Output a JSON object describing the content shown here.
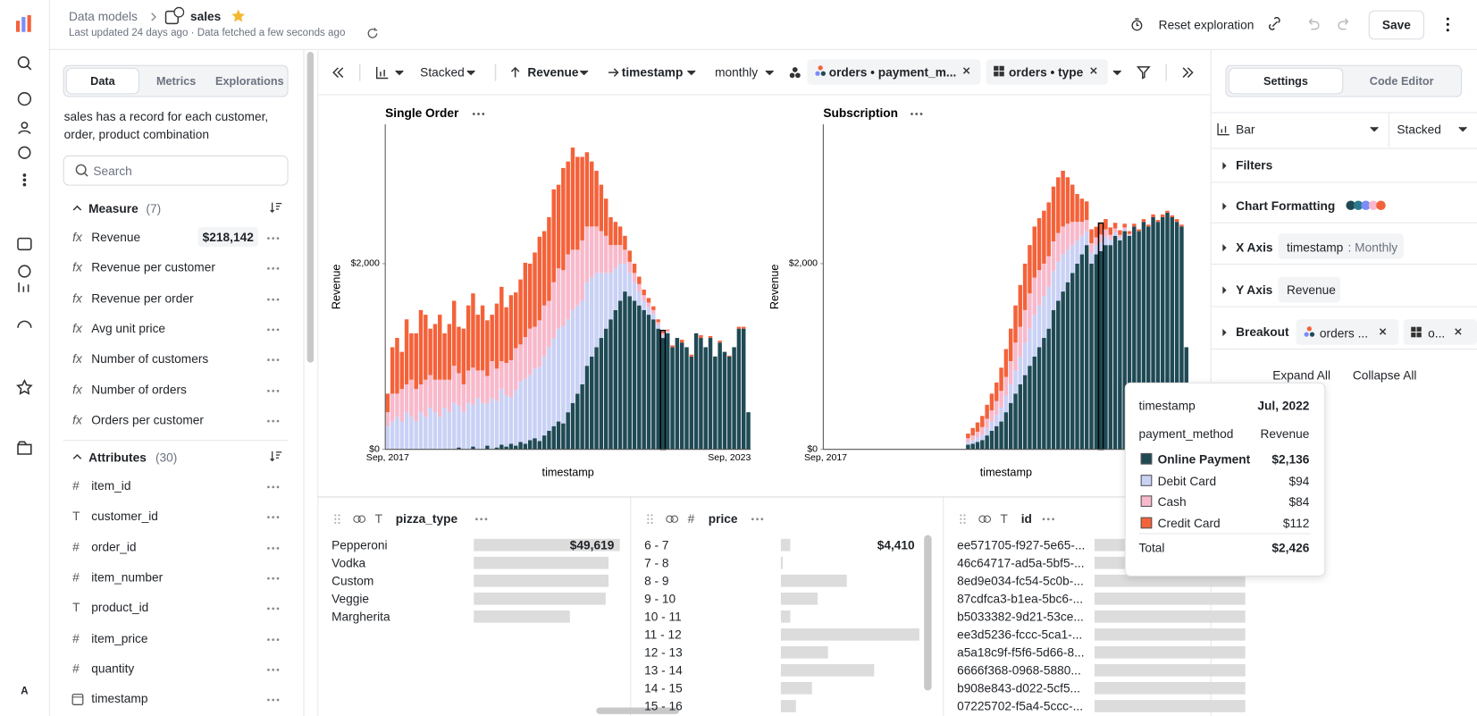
{
  "header": {
    "breadcrumb": "Data models",
    "model": "sales",
    "updated": "Last updated 24 days ago · Data fetched a few seconds ago",
    "reset": "Reset exploration",
    "save": "Save",
    "avatar": "A"
  },
  "sidebar": {
    "tabs": [
      "Data",
      "Metrics",
      "Explorations"
    ],
    "description": "sales has a record for each customer, order, product combination",
    "search": "Search",
    "measure": {
      "title": "Measure",
      "count": "(7)",
      "icon": "fx",
      "items": [
        {
          "name": "Revenue",
          "value": "$218,142"
        },
        {
          "name": "Revenue per customer"
        },
        {
          "name": "Revenue per order"
        },
        {
          "name": "Avg unit price"
        },
        {
          "name": "Number of customers"
        },
        {
          "name": "Number of orders"
        },
        {
          "name": "Orders per customer"
        }
      ]
    },
    "attributes": {
      "title": "Attributes",
      "count": "(30)",
      "items": [
        {
          "name": "item_id",
          "icon": "#"
        },
        {
          "name": "customer_id",
          "icon": "T"
        },
        {
          "name": "order_id",
          "icon": "#"
        },
        {
          "name": "item_number",
          "icon": "#"
        },
        {
          "name": "product_id",
          "icon": "T"
        },
        {
          "name": "item_price",
          "icon": "#"
        },
        {
          "name": "quantity",
          "icon": "#"
        },
        {
          "name": "timestamp"
        }
      ]
    }
  },
  "toolbar": {
    "display": "Stacked",
    "metric": "Revenue",
    "dimension": "timestamp",
    "grain": "monthly",
    "breakouts": [
      "orders • payment_m...",
      "orders • type"
    ]
  },
  "chart_data": [
    {
      "type": "bar",
      "stacked": true,
      "title": "Single Order",
      "y_label": "Revenue",
      "x_label": "timestamp",
      "highlight": 58,
      "categories": [
        "Sep, 2017",
        null,
        null,
        null,
        null,
        null,
        null,
        null,
        null,
        null,
        null,
        null,
        null,
        null,
        null,
        null,
        null,
        null,
        null,
        null,
        null,
        null,
        null,
        null,
        null,
        null,
        null,
        null,
        null,
        null,
        null,
        null,
        null,
        null,
        null,
        null,
        null,
        null,
        null,
        null,
        null,
        null,
        null,
        null,
        null,
        null,
        null,
        null,
        null,
        null,
        null,
        null,
        null,
        null,
        null,
        null,
        null,
        null,
        null,
        null,
        null,
        null,
        null,
        null,
        null,
        null,
        null,
        null,
        null,
        null,
        null,
        null,
        "Sep, 2023",
        null,
        null,
        null,
        null
      ],
      "ylim": [
        0,
        3500
      ],
      "yticks": [
        {
          "value": 0,
          "label": "$0"
        },
        {
          "value": 2000,
          "label": "$2,000"
        }
      ],
      "series": [
        {
          "name": "Online Payment",
          "color": "#1f4a55",
          "values": [
            0,
            0,
            0,
            0,
            0,
            0,
            0,
            0,
            0,
            0,
            0,
            0,
            0,
            0,
            0,
            20,
            0,
            0,
            30,
            0,
            0,
            40,
            0,
            20,
            50,
            30,
            60,
            40,
            80,
            60,
            100,
            120,
            90,
            150,
            200,
            250,
            300,
            280,
            400,
            500,
            600,
            700,
            900,
            1000,
            1100,
            1200,
            1300,
            1400,
            1500,
            1600,
            1700,
            1650,
            1600,
            1550,
            1500,
            1450,
            1400,
            1300,
            1200,
            1250,
            1100,
            1200,
            1150,
            1100,
            1000,
            1250,
            1200,
            1100,
            1200,
            1000,
            1150,
            1050,
            1000,
            1100,
            1300,
            1300,
            400
          ]
        },
        {
          "name": "Debit Card",
          "color": "#c9d1f5",
          "values": [
            250,
            300,
            350,
            300,
            400,
            350,
            300,
            400,
            350,
            450,
            400,
            350,
            450,
            400,
            500,
            450,
            400,
            500,
            450,
            550,
            500,
            450,
            550,
            500,
            600,
            550,
            500,
            600,
            650,
            700,
            700,
            750,
            800,
            850,
            900,
            950,
            1000,
            1050,
            1000,
            1000,
            950,
            900,
            900,
            850,
            800,
            700,
            600,
            500,
            450,
            400,
            300,
            250,
            200,
            150,
            100,
            80,
            60,
            40,
            30,
            20,
            0,
            0,
            0,
            0,
            0,
            0,
            0,
            0,
            0,
            0,
            0,
            0,
            0,
            0,
            0,
            0,
            0
          ]
        },
        {
          "name": "Cash",
          "color": "#f7b9cb",
          "values": [
            150,
            300,
            250,
            350,
            300,
            400,
            350,
            300,
            400,
            350,
            350,
            400,
            300,
            350,
            400,
            350,
            300,
            350,
            400,
            300,
            350,
            300,
            400,
            350,
            300,
            350,
            400,
            450,
            400,
            450,
            500,
            450,
            500,
            550,
            500,
            600,
            650,
            600,
            700,
            650,
            600,
            650,
            600,
            550,
            500,
            450,
            400,
            300,
            250,
            200,
            150,
            120,
            100,
            80,
            60,
            50,
            40,
            30,
            20,
            10,
            0,
            0,
            0,
            0,
            0,
            0,
            0,
            0,
            0,
            0,
            0,
            0,
            0,
            0,
            0,
            0,
            0
          ]
        },
        {
          "name": "Credit Card",
          "color": "#f4623a",
          "values": [
            200,
            500,
            600,
            400,
            700,
            500,
            600,
            800,
            700,
            500,
            600,
            700,
            500,
            600,
            700,
            500,
            600,
            700,
            800,
            600,
            700,
            600,
            500,
            700,
            800,
            600,
            700,
            600,
            700,
            800,
            700,
            800,
            900,
            800,
            900,
            1000,
            900,
            1100,
            1000,
            1100,
            1000,
            900,
            800,
            700,
            600,
            500,
            400,
            300,
            250,
            200,
            150,
            120,
            100,
            80,
            60,
            50,
            40,
            30,
            20,
            10,
            20,
            0,
            30,
            0,
            20,
            0,
            30,
            0,
            20,
            0,
            20,
            0,
            10,
            0,
            20,
            20,
            0
          ]
        }
      ]
    },
    {
      "type": "bar",
      "stacked": true,
      "title": "Subscription",
      "y_label": "Revenue",
      "x_label": "timestamp",
      "highlight": 58,
      "categories": [
        "Sep, 2017",
        null,
        null,
        null,
        null,
        null,
        null,
        null,
        null,
        null,
        null,
        null,
        null,
        null,
        null,
        null,
        null,
        null,
        null,
        null,
        null,
        null,
        null,
        null,
        null,
        null,
        null,
        null,
        null,
        null,
        null,
        null,
        null,
        null,
        null,
        null,
        null,
        null,
        null,
        null,
        null,
        null,
        null,
        null,
        null,
        null,
        null,
        null,
        null,
        null,
        null,
        null,
        null,
        null,
        null,
        null,
        null,
        null,
        null,
        null,
        null,
        null,
        null,
        null,
        null,
        null,
        null,
        null,
        null,
        null,
        null,
        null,
        null,
        null,
        null,
        null,
        null
      ],
      "ylim": [
        0,
        3500
      ],
      "yticks": [
        {
          "value": 0,
          "label": "$0"
        },
        {
          "value": 2000,
          "label": "$2,000"
        }
      ],
      "series": [
        {
          "name": "Online Payment",
          "color": "#1f4a55",
          "values": [
            0,
            0,
            0,
            0,
            0,
            0,
            0,
            0,
            0,
            0,
            0,
            0,
            0,
            0,
            0,
            0,
            0,
            0,
            0,
            0,
            0,
            0,
            0,
            0,
            0,
            0,
            0,
            0,
            0,
            0,
            50,
            60,
            80,
            100,
            150,
            200,
            250,
            300,
            400,
            500,
            600,
            700,
            800,
            900,
            1000,
            1100,
            1200,
            1300,
            1500,
            1600,
            1700,
            1800,
            1900,
            2000,
            2100,
            2200,
            2000,
            2100,
            2136,
            2200,
            2200,
            2300,
            2250,
            2350,
            2300,
            2400,
            2350,
            2450,
            2400,
            2500,
            2450,
            2500,
            2550,
            2500,
            2450,
            2400,
            1100
          ]
        },
        {
          "name": "Debit Card",
          "color": "#c9d1f5",
          "values": [
            0,
            0,
            0,
            0,
            0,
            0,
            0,
            0,
            0,
            0,
            0,
            0,
            0,
            0,
            0,
            0,
            0,
            0,
            0,
            0,
            0,
            0,
            0,
            0,
            0,
            0,
            0,
            0,
            0,
            0,
            30,
            40,
            50,
            60,
            80,
            100,
            120,
            150,
            180,
            200,
            250,
            300,
            350,
            400,
            450,
            450,
            450,
            450,
            420,
            420,
            400,
            350,
            300,
            250,
            200,
            150,
            120,
            96,
            94,
            90,
            60,
            40,
            30,
            20,
            10,
            0,
            0,
            0,
            0,
            0,
            0,
            0,
            0,
            0,
            0,
            0,
            0
          ]
        },
        {
          "name": "Cash",
          "color": "#f7b9cb",
          "values": [
            0,
            0,
            0,
            0,
            0,
            0,
            0,
            0,
            0,
            0,
            0,
            0,
            0,
            0,
            0,
            0,
            0,
            0,
            0,
            0,
            0,
            0,
            0,
            0,
            0,
            0,
            0,
            0,
            0,
            0,
            40,
            50,
            60,
            80,
            100,
            120,
            150,
            180,
            200,
            250,
            300,
            320,
            350,
            380,
            400,
            380,
            350,
            330,
            320,
            310,
            300,
            280,
            250,
            200,
            150,
            120,
            100,
            86,
            84,
            80,
            50,
            40,
            30,
            20,
            10,
            0,
            0,
            0,
            0,
            0,
            0,
            0,
            0,
            0,
            0,
            0,
            0
          ]
        },
        {
          "name": "Credit Card",
          "color": "#f4623a",
          "values": [
            0,
            0,
            0,
            0,
            0,
            0,
            0,
            0,
            0,
            0,
            0,
            0,
            0,
            0,
            0,
            0,
            0,
            0,
            0,
            0,
            0,
            0,
            0,
            0,
            0,
            0,
            0,
            0,
            0,
            0,
            50,
            80,
            100,
            120,
            150,
            180,
            200,
            250,
            300,
            350,
            400,
            450,
            500,
            520,
            550,
            560,
            570,
            580,
            590,
            600,
            600,
            500,
            400,
            300,
            250,
            200,
            150,
            115,
            112,
            110,
            80,
            60,
            50,
            40,
            30,
            30,
            20,
            30,
            20,
            30,
            20,
            30,
            20,
            20,
            30,
            20,
            0
          ]
        }
      ]
    }
  ],
  "tooltip": {
    "field": "timestamp",
    "value": "Jul, 2022",
    "col1": "payment_method",
    "col2": "Revenue",
    "rows": [
      {
        "name": "Online Payment",
        "value": "$2,136"
      },
      {
        "name": "Debit Card",
        "value": "$94"
      },
      {
        "name": "Cash",
        "value": "$84"
      },
      {
        "name": "Credit Card",
        "value": "$112"
      }
    ],
    "total_label": "Total",
    "total": "$2,426"
  },
  "panels": [
    {
      "name": "pizza_type",
      "icon": "T",
      "categories": [
        "Pepperoni",
        "Vodka",
        "Custom",
        "Veggie",
        "Margherita"
      ],
      "values": [
        49619,
        45800,
        45800,
        44800,
        32700
      ],
      "value_labels": [
        "$49,619",
        null,
        null,
        null,
        null
      ],
      "xlim": [
        0,
        49619
      ]
    },
    {
      "name": "price",
      "icon": "#",
      "categories": [
        "6 - 7",
        "7 - 8",
        "8 - 9",
        "9 - 10",
        "10 - 11",
        "11 - 12",
        "12 - 13",
        "13 - 14",
        "14 - 15",
        "15 - 16"
      ],
      "values": [
        4410,
        900,
        31000,
        17000,
        4400,
        65000,
        22000,
        43500,
        14500,
        7000
      ],
      "value_labels": [
        "$4,410",
        null,
        null,
        null,
        null,
        null,
        null,
        null,
        null,
        null
      ],
      "xlim": [
        0,
        65300
      ]
    },
    {
      "name": "id",
      "icon": "T",
      "categories": [
        "ee571705-f927-5e65-...",
        "46c64717-ad5a-5bf5-...",
        "8ed9e034-fc54-5c0b-...",
        "87cdfca3-b1ea-5bc6-...",
        "b5033382-9d21-53ce...",
        "ee3d5236-fccc-5ca1-...",
        "a5a18c9f-f5f6-5d66-8...",
        "6666f368-0968-5880...",
        "b908e843-d022-5cf5...",
        "07225702-f5a4-5ccc-..."
      ],
      "values": [
        100,
        100,
        100,
        100,
        100,
        100,
        100,
        100,
        100,
        100
      ],
      "xlim": [
        0,
        100
      ]
    }
  ],
  "settings": {
    "tabs": [
      "Settings",
      "Code Editor"
    ],
    "chart": "Bar",
    "display": "Stacked",
    "sections": [
      "Filters",
      "Chart Formatting",
      "X Axis",
      "Y Axis",
      "Breakout"
    ],
    "x_field": "timestamp",
    "x_grain": ": Monthly",
    "y_field": "Revenue",
    "breakouts": [
      "orders ...",
      "o..."
    ],
    "expand": "Expand All",
    "collapse": "Collapse All"
  }
}
